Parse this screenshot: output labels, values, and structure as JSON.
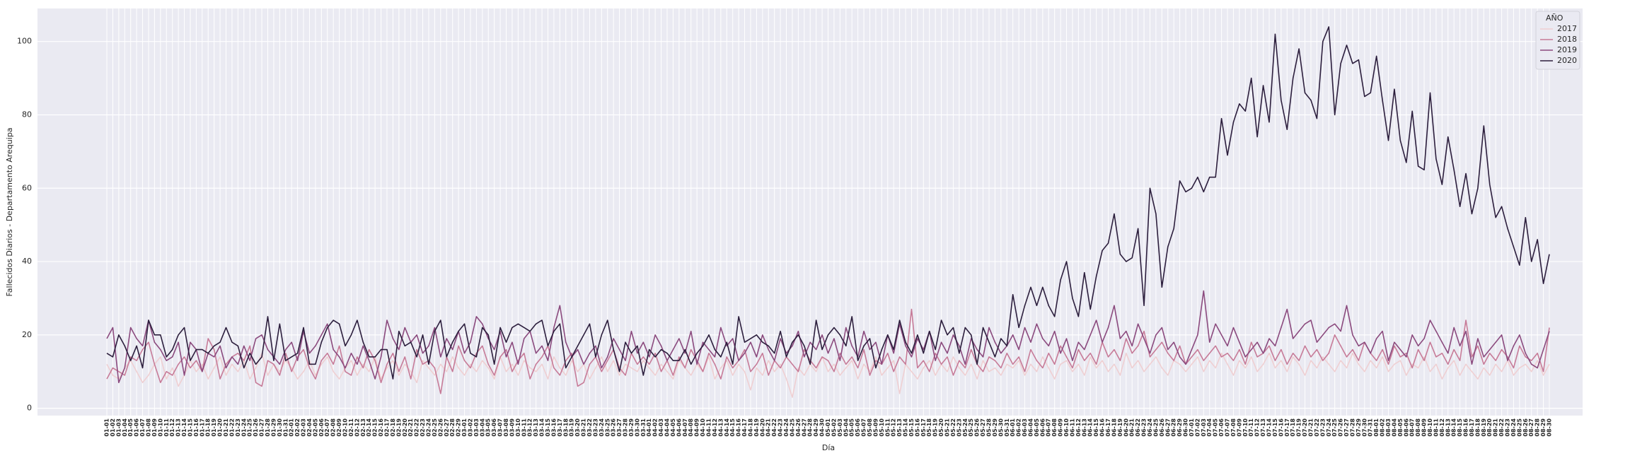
{
  "chart_data": {
    "type": "line",
    "x_label": "Día",
    "y_label": "Fallecidos Diarios - Departamento Arequipa",
    "legend_title": "AÑO",
    "legend": "upper right",
    "grid": true,
    "ylim": [
      -2,
      109
    ],
    "yticks": [
      0,
      20,
      40,
      60,
      80,
      100
    ],
    "categories": [
      "01-01",
      "01-02",
      "01-03",
      "01-04",
      "01-05",
      "01-06",
      "01-07",
      "01-08",
      "01-09",
      "01-10",
      "01-11",
      "01-12",
      "01-13",
      "01-14",
      "01-15",
      "01-16",
      "01-17",
      "01-18",
      "01-19",
      "01-20",
      "01-21",
      "01-22",
      "01-23",
      "01-24",
      "01-25",
      "01-26",
      "01-27",
      "01-28",
      "01-29",
      "01-30",
      "01-31",
      "02-01",
      "02-02",
      "02-03",
      "02-04",
      "02-05",
      "02-06",
      "02-07",
      "02-08",
      "02-09",
      "02-10",
      "02-11",
      "02-12",
      "02-13",
      "02-14",
      "02-15",
      "02-16",
      "02-17",
      "02-18",
      "02-19",
      "02-20",
      "02-21",
      "02-22",
      "02-23",
      "02-24",
      "02-25",
      "02-26",
      "02-27",
      "02-28",
      "02-29",
      "03-01",
      "03-02",
      "03-03",
      "03-04",
      "03-05",
      "03-06",
      "03-07",
      "03-08",
      "03-09",
      "03-10",
      "03-11",
      "03-12",
      "03-13",
      "03-14",
      "03-15",
      "03-16",
      "03-17",
      "03-18",
      "03-19",
      "03-20",
      "03-21",
      "03-22",
      "03-23",
      "03-24",
      "03-25",
      "03-26",
      "03-27",
      "03-28",
      "03-29",
      "03-30",
      "03-31",
      "04-01",
      "04-02",
      "04-03",
      "04-04",
      "04-05",
      "04-06",
      "04-07",
      "04-08",
      "04-09",
      "04-10",
      "04-11",
      "04-12",
      "04-13",
      "04-14",
      "04-15",
      "04-16",
      "04-17",
      "04-18",
      "04-19",
      "04-20",
      "04-21",
      "04-22",
      "04-23",
      "04-24",
      "04-25",
      "04-26",
      "04-27",
      "04-28",
      "04-29",
      "04-30",
      "05-01",
      "05-02",
      "05-03",
      "05-04",
      "05-05",
      "05-06",
      "05-07",
      "05-08",
      "05-09",
      "05-10",
      "05-11",
      "05-12",
      "05-13",
      "05-14",
      "05-15",
      "05-16",
      "05-17",
      "05-18",
      "05-19",
      "05-20",
      "05-21",
      "05-22",
      "05-23",
      "05-24",
      "05-25",
      "05-26",
      "05-27",
      "05-28",
      "05-29",
      "05-30",
      "05-31",
      "06-01",
      "06-02",
      "06-03",
      "06-04",
      "06-05",
      "06-06",
      "06-07",
      "06-08",
      "06-09",
      "06-10",
      "06-11",
      "06-12",
      "06-13",
      "06-14",
      "06-15",
      "06-16",
      "06-17",
      "06-18",
      "06-19",
      "06-20",
      "06-21",
      "06-22",
      "06-23",
      "06-24",
      "06-25",
      "06-26",
      "06-27",
      "06-28",
      "06-29",
      "06-30",
      "07-01",
      "07-02",
      "07-03",
      "07-04",
      "07-05",
      "07-06",
      "07-07",
      "07-08",
      "07-09",
      "07-10",
      "07-11",
      "07-12",
      "07-13",
      "07-14",
      "07-15",
      "07-16",
      "07-17",
      "07-18",
      "07-19",
      "07-20",
      "07-21",
      "07-22",
      "07-23",
      "07-24",
      "07-25",
      "07-26",
      "07-27",
      "07-28",
      "07-29",
      "07-30",
      "07-31",
      "08-01",
      "08-02",
      "08-03",
      "08-04",
      "08-05",
      "08-06",
      "08-07",
      "08-08",
      "08-09",
      "08-10",
      "08-11",
      "08-12",
      "08-13",
      "08-14",
      "08-15",
      "08-16",
      "08-17",
      "08-18",
      "08-19",
      "08-20",
      "08-21",
      "08-22",
      "08-23",
      "08-24",
      "08-25",
      "08-26",
      "08-27",
      "08-28",
      "08-29",
      "08-30"
    ],
    "series": [
      {
        "name": "2017",
        "color": "#efcfd2",
        "values": [
          12,
          9,
          8,
          11,
          13,
          10,
          7,
          9,
          12,
          14,
          8,
          11,
          6,
          9,
          13,
          10,
          12,
          8,
          11,
          14,
          9,
          12,
          10,
          13,
          8,
          11,
          15,
          9,
          12,
          10,
          13,
          11,
          8,
          10,
          13,
          9,
          12,
          14,
          10,
          8,
          11,
          13,
          9,
          12,
          10,
          14,
          8,
          11,
          13,
          9,
          12,
          10,
          7,
          13,
          11,
          9,
          12,
          10,
          14,
          11,
          9,
          12,
          10,
          13,
          11,
          8,
          14,
          10,
          12,
          9,
          13,
          11,
          10,
          12,
          8,
          14,
          11,
          9,
          13,
          10,
          12,
          8,
          11,
          14,
          10,
          13,
          9,
          12,
          11,
          10,
          13,
          11,
          9,
          12,
          10,
          8,
          13,
          11,
          9,
          12,
          10,
          14,
          8,
          11,
          13,
          9,
          12,
          10,
          5,
          11,
          9,
          13,
          10,
          12,
          8,
          3,
          11,
          9,
          12,
          10,
          14,
          10,
          12,
          9,
          11,
          13,
          8,
          12,
          10,
          14,
          9,
          11,
          13,
          4,
          12,
          10,
          8,
          11,
          13,
          9,
          12,
          10,
          14,
          11,
          9,
          12,
          8,
          13,
          10,
          11,
          9,
          12,
          11,
          13,
          9,
          12,
          10,
          14,
          11,
          8,
          12,
          13,
          10,
          12,
          9,
          14,
          11,
          13,
          10,
          12,
          9,
          15,
          11,
          13,
          10,
          12,
          14,
          11,
          9,
          13,
          12,
          10,
          12,
          14,
          10,
          13,
          11,
          15,
          12,
          9,
          13,
          11,
          14,
          10,
          12,
          15,
          11,
          13,
          10,
          14,
          12,
          9,
          13,
          11,
          14,
          12,
          10,
          13,
          11,
          15,
          12,
          10,
          13,
          11,
          14,
          10,
          12,
          13,
          9,
          12,
          11,
          14,
          10,
          12,
          8,
          11,
          13,
          9,
          12,
          10,
          8,
          11,
          9,
          12,
          10,
          13,
          9,
          11,
          12,
          10,
          13,
          9,
          12
        ]
      },
      {
        "name": "2018",
        "color": "#c77b98",
        "values": [
          8,
          11,
          10,
          9,
          14,
          13,
          16,
          18,
          12,
          7,
          10,
          9,
          12,
          14,
          11,
          13,
          10,
          19,
          16,
          8,
          12,
          14,
          15,
          13,
          17,
          7,
          6,
          13,
          12,
          9,
          15,
          10,
          14,
          16,
          11,
          8,
          13,
          15,
          12,
          17,
          10,
          9,
          14,
          11,
          16,
          13,
          7,
          12,
          15,
          10,
          14,
          8,
          16,
          12,
          13,
          11,
          4,
          14,
          10,
          17,
          13,
          11,
          15,
          17,
          12,
          9,
          14,
          16,
          10,
          13,
          15,
          8,
          12,
          14,
          17,
          11,
          9,
          13,
          15,
          6,
          7,
          12,
          14,
          10,
          13,
          16,
          11,
          9,
          15,
          12,
          14,
          12,
          15,
          10,
          13,
          9,
          14,
          11,
          16,
          13,
          10,
          15,
          12,
          8,
          14,
          11,
          13,
          16,
          10,
          12,
          15,
          9,
          13,
          11,
          14,
          12,
          10,
          16,
          13,
          11,
          14,
          13,
          10,
          15,
          12,
          14,
          11,
          16,
          9,
          13,
          12,
          15,
          10,
          14,
          12,
          27,
          11,
          13,
          10,
          15,
          12,
          14,
          9,
          13,
          11,
          16,
          12,
          10,
          14,
          13,
          11,
          15,
          12,
          14,
          10,
          16,
          13,
          11,
          15,
          12,
          17,
          14,
          11,
          16,
          13,
          15,
          12,
          18,
          14,
          16,
          13,
          19,
          15,
          17,
          21,
          14,
          16,
          18,
          15,
          13,
          17,
          12,
          14,
          16,
          13,
          15,
          17,
          14,
          15,
          13,
          16,
          12,
          18,
          14,
          15,
          17,
          13,
          16,
          12,
          15,
          13,
          17,
          14,
          16,
          13,
          15,
          20,
          17,
          14,
          16,
          13,
          18,
          15,
          13,
          16,
          12,
          17,
          14,
          15,
          11,
          16,
          13,
          18,
          14,
          15,
          12,
          16,
          13,
          24,
          14,
          17,
          12,
          15,
          13,
          16,
          14,
          11,
          17,
          14,
          13,
          15,
          10,
          22
        ]
      },
      {
        "name": "2019",
        "color": "#8b4a7e",
        "values": [
          19,
          22,
          7,
          11,
          22,
          19,
          17,
          24,
          18,
          16,
          13,
          14,
          18,
          9,
          18,
          16,
          10,
          15,
          14,
          17,
          11,
          14,
          12,
          17,
          13,
          19,
          20,
          16,
          14,
          12,
          16,
          18,
          13,
          21,
          15,
          17,
          20,
          23,
          16,
          14,
          11,
          15,
          12,
          17,
          13,
          8,
          14,
          24,
          19,
          16,
          22,
          18,
          20,
          15,
          17,
          22,
          14,
          19,
          16,
          21,
          15,
          18,
          25,
          23,
          19,
          16,
          21,
          14,
          18,
          12,
          19,
          21,
          15,
          17,
          13,
          22,
          28,
          18,
          14,
          16,
          12,
          15,
          17,
          11,
          14,
          19,
          16,
          13,
          21,
          15,
          18,
          14,
          20,
          17,
          13,
          16,
          19,
          15,
          21,
          12,
          18,
          16,
          14,
          22,
          17,
          19,
          13,
          15,
          18,
          14,
          20,
          16,
          13,
          19,
          15,
          17,
          21,
          14,
          18,
          16,
          20,
          15,
          19,
          13,
          22,
          17,
          14,
          21,
          16,
          18,
          12,
          20,
          15,
          23,
          17,
          14,
          19,
          16,
          21,
          13,
          18,
          15,
          20,
          17,
          12,
          19,
          16,
          14,
          22,
          18,
          15,
          17,
          20,
          16,
          22,
          18,
          23,
          19,
          17,
          21,
          15,
          19,
          13,
          18,
          16,
          20,
          24,
          18,
          22,
          28,
          19,
          21,
          17,
          23,
          19,
          15,
          20,
          22,
          16,
          18,
          14,
          12,
          16,
          20,
          32,
          18,
          23,
          20,
          17,
          22,
          18,
          14,
          16,
          18,
          15,
          19,
          17,
          22,
          27,
          19,
          21,
          23,
          24,
          18,
          20,
          22,
          23,
          21,
          28,
          20,
          17,
          18,
          15,
          19,
          21,
          13,
          18,
          16,
          14,
          20,
          17,
          19,
          24,
          21,
          18,
          15,
          22,
          17,
          21,
          12,
          19,
          14,
          16,
          18,
          20,
          13,
          17,
          20,
          15,
          12,
          11,
          16,
          21
        ]
      },
      {
        "name": "2020",
        "color": "#2c1e3d",
        "values": [
          15,
          14,
          20,
          17,
          13,
          17,
          11,
          24,
          20,
          20,
          14,
          16,
          20,
          22,
          13,
          16,
          16,
          15,
          17,
          18,
          22,
          18,
          17,
          11,
          15,
          12,
          14,
          25,
          13,
          23,
          13,
          14,
          15,
          22,
          12,
          12,
          18,
          22,
          24,
          23,
          17,
          20,
          24,
          18,
          14,
          14,
          16,
          16,
          8,
          21,
          17,
          18,
          14,
          20,
          12,
          21,
          24,
          14,
          18,
          21,
          23,
          15,
          14,
          22,
          20,
          12,
          22,
          18,
          22,
          23,
          22,
          21,
          23,
          24,
          17,
          21,
          23,
          11,
          14,
          17,
          20,
          23,
          14,
          20,
          24,
          16,
          10,
          18,
          15,
          17,
          9,
          16,
          14,
          16,
          15,
          13,
          13,
          16,
          12,
          15,
          17,
          20,
          16,
          14,
          18,
          12,
          25,
          18,
          19,
          20,
          18,
          17,
          15,
          21,
          14,
          18,
          20,
          17,
          12,
          24,
          16,
          20,
          22,
          20,
          17,
          25,
          13,
          17,
          19,
          11,
          16,
          20,
          16,
          24,
          18,
          15,
          20,
          15,
          21,
          16,
          24,
          20,
          22,
          15,
          22,
          20,
          12,
          22,
          18,
          14,
          19,
          17,
          31,
          22,
          28,
          33,
          28,
          33,
          28,
          25,
          35,
          40,
          30,
          25,
          37,
          27,
          36,
          43,
          45,
          53,
          42,
          40,
          41,
          49,
          28,
          60,
          53,
          33,
          44,
          49,
          62,
          59,
          60,
          63,
          59,
          63,
          63,
          79,
          69,
          78,
          83,
          81,
          90,
          74,
          88,
          78,
          102,
          84,
          76,
          90,
          98,
          86,
          84,
          79,
          100,
          104,
          80,
          94,
          99,
          94,
          95,
          85,
          86,
          96,
          84,
          73,
          87,
          73,
          67,
          81,
          66,
          65,
          86,
          68,
          61,
          74,
          65,
          55,
          64,
          53,
          60,
          77,
          61,
          52,
          55,
          49,
          44,
          39,
          52,
          40,
          46,
          34,
          42
        ]
      }
    ]
  }
}
